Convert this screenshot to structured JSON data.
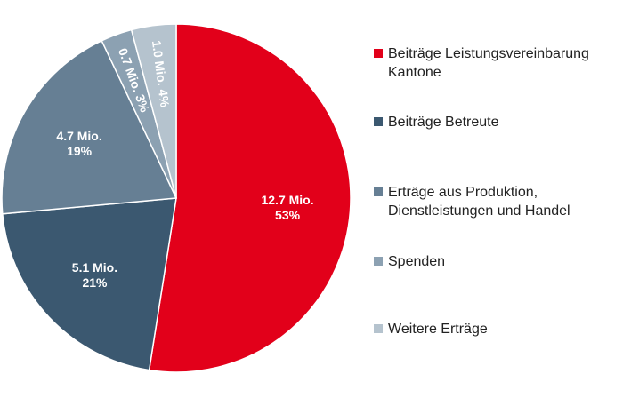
{
  "chart_data": {
    "type": "pie",
    "categories": [
      "Beiträge Leistungsvereinbarung Kantone",
      "Beiträge Betreute",
      "Erträge aus Produktion, Dienstleistungen und Handel",
      "Spenden",
      "Weitere Erträge"
    ],
    "values": [
      12.7,
      5.1,
      4.7,
      0.7,
      1.0
    ],
    "value_labels": [
      "12.7 Mio.",
      "5.1 Mio.",
      "4.7 Mio.",
      "0.7 Mio.",
      "1.0 Mio."
    ],
    "percentages": [
      53,
      21,
      19,
      3,
      4
    ],
    "percentage_labels": [
      "53%",
      "21%",
      "19%",
      "3%",
      "4%"
    ],
    "colors": [
      "#e2001a",
      "#3b5870",
      "#667f94",
      "#8ca1b2",
      "#b5c3ce"
    ],
    "legend": "right"
  }
}
